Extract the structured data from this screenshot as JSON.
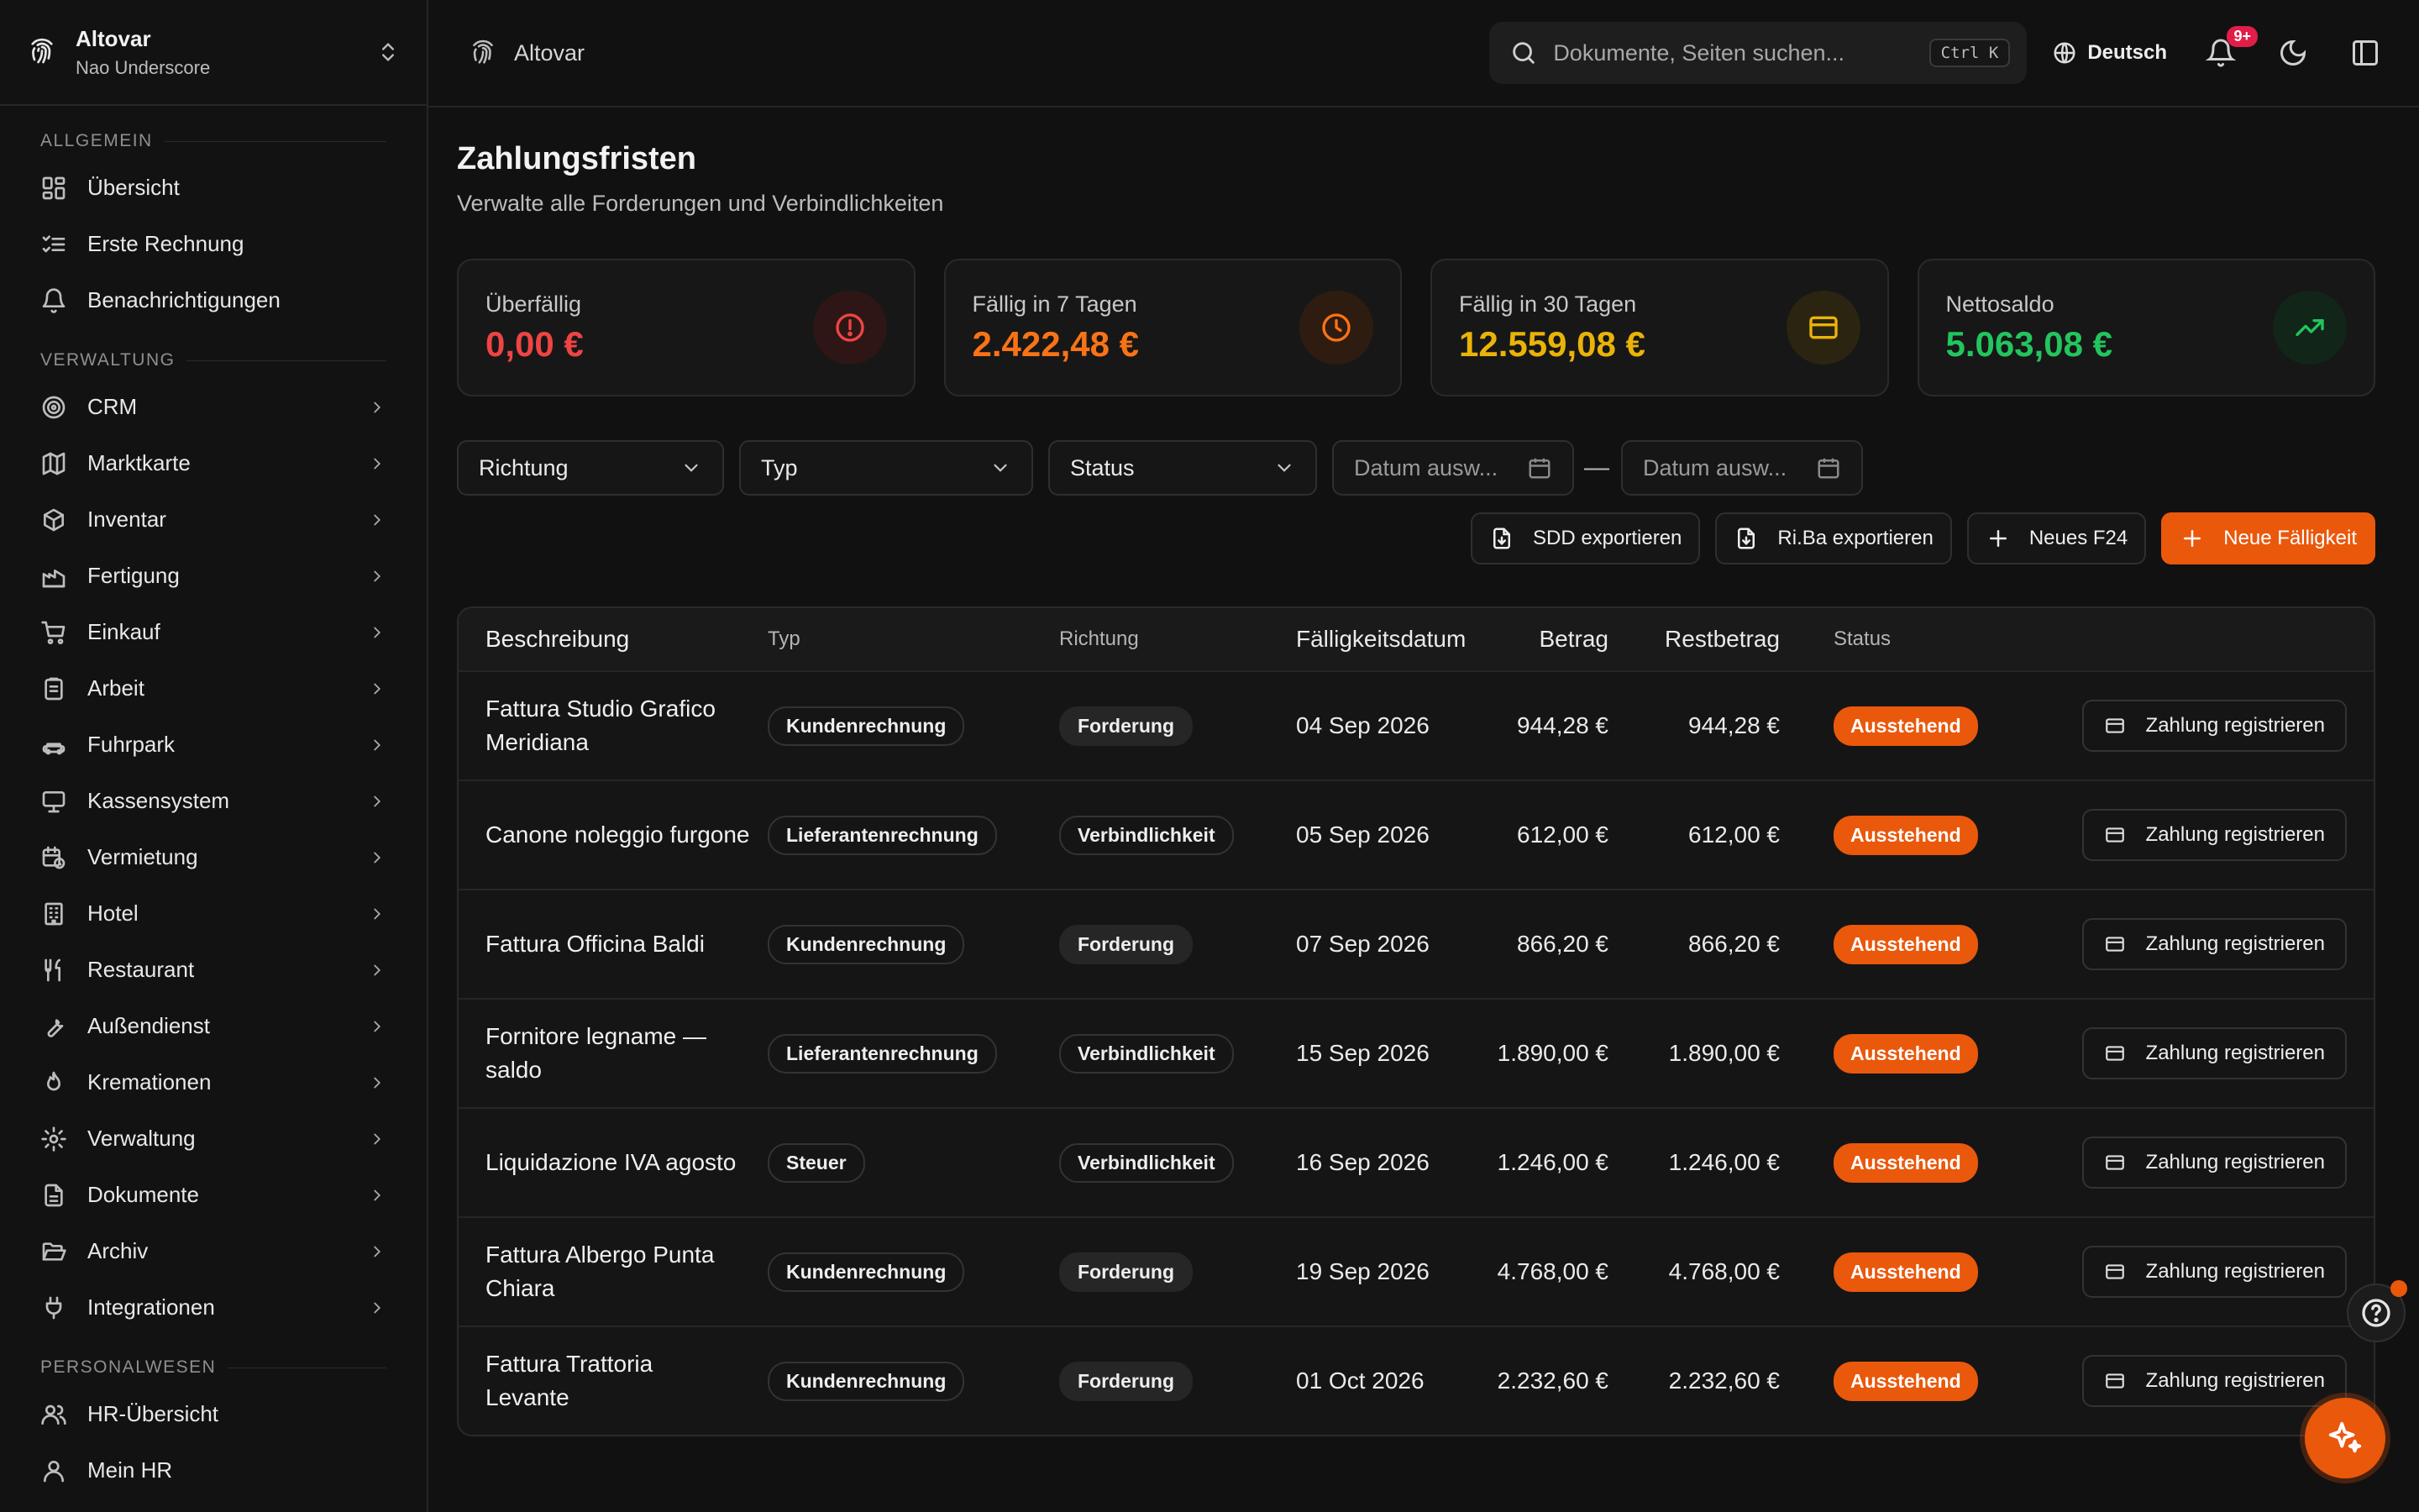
{
  "sidebar": {
    "org_name": "Altovar",
    "user_name": "Nao Underscore",
    "sections": {
      "allgemein": "ALLGEMEIN",
      "verwaltung": "VERWALTUNG",
      "personalwesen": "PERSONALWESEN"
    },
    "allgemein_items": [
      "Übersicht",
      "Erste Rechnung",
      "Benachrichtigungen"
    ],
    "verwaltung_items": [
      "CRM",
      "Marktkarte",
      "Inventar",
      "Fertigung",
      "Einkauf",
      "Arbeit",
      "Fuhrpark",
      "Kassensystem",
      "Vermietung",
      "Hotel",
      "Restaurant",
      "Außendienst",
      "Kremationen",
      "Verwaltung",
      "Dokumente",
      "Archiv",
      "Integrationen"
    ],
    "personal_items": [
      "HR-Übersicht",
      "Mein HR"
    ]
  },
  "topbar": {
    "brand": "Altovar",
    "search_placeholder": "Dokumente, Seiten suchen...",
    "search_shortcut": "Ctrl K",
    "language": "Deutsch",
    "notification_count": "9+"
  },
  "page": {
    "title": "Zahlungsfristen",
    "subtitle": "Verwalte alle Forderungen und Verbindlichkeiten"
  },
  "cards": [
    {
      "label": "Überfällig",
      "value": "0,00 €",
      "color": "#ef4444",
      "icon": "alert-circle-icon"
    },
    {
      "label": "Fällig in 7 Tagen",
      "value": "2.422,48 €",
      "color": "#f97316",
      "icon": "clock-icon"
    },
    {
      "label": "Fällig in 30 Tagen",
      "value": "12.559,08 €",
      "color": "#eab308",
      "icon": "credit-card-icon"
    },
    {
      "label": "Nettosaldo",
      "value": "5.063,08 €",
      "color": "#22c55e",
      "icon": "trending-up-icon"
    }
  ],
  "filters": {
    "richtung": "Richtung",
    "typ": "Typ",
    "status": "Status",
    "date_from": "Datum ausw...",
    "date_to": "Datum ausw...",
    "separator": "—"
  },
  "actions": {
    "sdd": "SDD exportieren",
    "riba": "Ri.Ba exportieren",
    "f24": "Neues F24",
    "new_due": "Neue Fälligkeit"
  },
  "table": {
    "headers": [
      "Beschreibung",
      "Typ",
      "Richtung",
      "Fälligkeitsdatum",
      "Betrag",
      "Restbetrag",
      "Status"
    ],
    "pay_label": "Zahlung registrieren",
    "rows": [
      {
        "desc": "Fattura Studio Grafico Meridiana",
        "typ": "Kundenrechnung",
        "richtung": "Forderung",
        "date": "04 Sep 2026",
        "betrag": "944,28 €",
        "rest": "944,28 €",
        "status": "Ausstehend"
      },
      {
        "desc": "Canone noleggio furgone",
        "typ": "Lieferantenrechnung",
        "richtung": "Verbindlichkeit",
        "date": "05 Sep 2026",
        "betrag": "612,00 €",
        "rest": "612,00 €",
        "status": "Ausstehend"
      },
      {
        "desc": "Fattura Officina Baldi",
        "typ": "Kundenrechnung",
        "richtung": "Forderung",
        "date": "07 Sep 2026",
        "betrag": "866,20 €",
        "rest": "866,20 €",
        "status": "Ausstehend"
      },
      {
        "desc": "Fornitore legname — saldo",
        "typ": "Lieferantenrechnung",
        "richtung": "Verbindlichkeit",
        "date": "15 Sep 2026",
        "betrag": "1.890,00 €",
        "rest": "1.890,00 €",
        "status": "Ausstehend"
      },
      {
        "desc": "Liquidazione IVA agosto",
        "typ": "Steuer",
        "richtung": "Verbindlichkeit",
        "date": "16 Sep 2026",
        "betrag": "1.246,00 €",
        "rest": "1.246,00 €",
        "status": "Ausstehend"
      },
      {
        "desc": "Fattura Albergo Punta Chiara",
        "typ": "Kundenrechnung",
        "richtung": "Forderung",
        "date": "19 Sep 2026",
        "betrag": "4.768,00 €",
        "rest": "4.768,00 €",
        "status": "Ausstehend"
      },
      {
        "desc": "Fattura Trattoria Levante",
        "typ": "Kundenrechnung",
        "richtung": "Forderung",
        "date": "01 Oct 2026",
        "betrag": "2.232,60 €",
        "rest": "2.232,60 €",
        "status": "Ausstehend"
      }
    ]
  }
}
